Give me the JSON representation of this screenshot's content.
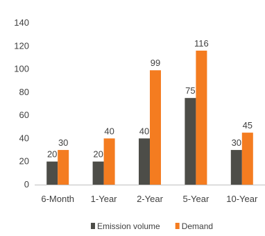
{
  "chart_data": {
    "type": "bar",
    "title": "",
    "xlabel": "",
    "ylabel": "",
    "categories": [
      "6-Month",
      "1-Year",
      "2-Year",
      "5-Year",
      "10-Year"
    ],
    "series": [
      {
        "name": "Emission volume",
        "color": "#4d4d48",
        "values": [
          20,
          20,
          40,
          75,
          30
        ]
      },
      {
        "name": "Demand",
        "color": "#f47c20",
        "values": [
          30,
          40,
          99,
          116,
          45
        ]
      }
    ],
    "ylim": [
      0,
      140
    ],
    "yticks": [
      0,
      20,
      40,
      60,
      80,
      100,
      120,
      140
    ],
    "grid": false,
    "legend": "bottom"
  }
}
